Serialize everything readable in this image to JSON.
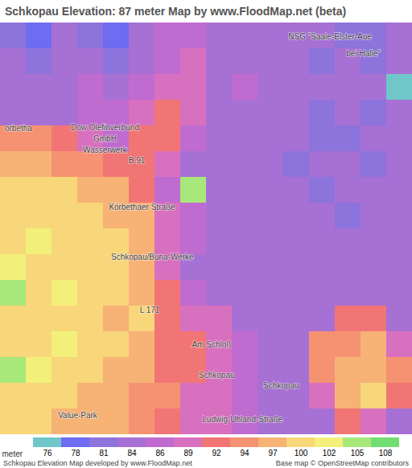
{
  "chart_data": {
    "type": "heatmap",
    "title": "Schkopau Elevation: 87 meter Map by www.FloodMap.net (beta)",
    "tick_labels": false,
    "cells": [
      [
        81,
        78,
        84,
        81,
        78,
        84,
        86,
        86,
        84,
        84,
        84,
        84,
        84,
        81,
        81,
        84
      ],
      [
        84,
        81,
        84,
        84,
        81,
        84,
        86,
        89,
        84,
        84,
        84,
        84,
        81,
        84,
        81,
        84
      ],
      [
        84,
        84,
        84,
        86,
        84,
        86,
        89,
        89,
        84,
        86,
        84,
        84,
        84,
        84,
        84,
        76
      ],
      [
        84,
        84,
        84,
        86,
        86,
        89,
        92,
        89,
        84,
        84,
        84,
        84,
        81,
        84,
        81,
        84
      ],
      [
        94,
        94,
        92,
        89,
        86,
        92,
        92,
        86,
        84,
        84,
        84,
        84,
        81,
        81,
        84,
        84
      ],
      [
        97,
        97,
        94,
        94,
        92,
        92,
        89,
        84,
        84,
        84,
        84,
        81,
        84,
        84,
        81,
        84
      ],
      [
        100,
        100,
        100,
        97,
        97,
        92,
        86,
        105,
        84,
        84,
        84,
        84,
        81,
        84,
        84,
        84
      ],
      [
        100,
        100,
        100,
        100,
        97,
        97,
        89,
        86,
        84,
        84,
        84,
        84,
        84,
        81,
        84,
        84
      ],
      [
        100,
        102,
        100,
        100,
        100,
        97,
        89,
        86,
        84,
        84,
        84,
        84,
        84,
        84,
        84,
        84
      ],
      [
        102,
        100,
        100,
        100,
        100,
        97,
        89,
        84,
        84,
        84,
        84,
        84,
        84,
        84,
        84,
        84
      ],
      [
        105,
        100,
        102,
        100,
        100,
        97,
        92,
        86,
        84,
        84,
        84,
        84,
        84,
        84,
        84,
        84
      ],
      [
        100,
        100,
        100,
        100,
        97,
        100,
        92,
        89,
        89,
        84,
        84,
        84,
        84,
        92,
        92,
        84
      ],
      [
        100,
        100,
        102,
        100,
        100,
        97,
        92,
        92,
        89,
        86,
        84,
        84,
        94,
        94,
        97,
        89
      ],
      [
        105,
        102,
        100,
        100,
        97,
        97,
        92,
        92,
        89,
        86,
        84,
        84,
        94,
        97,
        97,
        94
      ],
      [
        100,
        100,
        100,
        97,
        97,
        94,
        94,
        89,
        89,
        86,
        84,
        84,
        89,
        97,
        100,
        92
      ],
      [
        100,
        100,
        97,
        97,
        97,
        94,
        92,
        89,
        89,
        86,
        84,
        84,
        84,
        92,
        89,
        84
      ]
    ],
    "colorbar": {
      "label": "meter",
      "ticks": [
        76,
        78,
        81,
        84,
        86,
        89,
        92,
        94,
        97,
        100,
        102,
        105,
        108
      ],
      "colors": [
        "#6fc7c9",
        "#6e6cf0",
        "#8d73dc",
        "#a770d4",
        "#c06bd0",
        "#d870c0",
        "#f27575",
        "#f59272",
        "#f7b276",
        "#f8d67a",
        "#f2f07a",
        "#a8e87a",
        "#72de72"
      ]
    },
    "annotations": [
      {
        "text": "NSG \"Saale-Elster-Aue",
        "x": 12.8,
        "y": 0.55
      },
      {
        "text": "bei Halle\"",
        "x": 14.1,
        "y": 1.2
      },
      {
        "text": "orbetha",
        "x": 0.7,
        "y": 4.1
      },
      {
        "text": "Dow Olefinverbund",
        "x": 4.06,
        "y": 4.06
      },
      {
        "text": "GmbH",
        "x": 4.06,
        "y": 4.5
      },
      {
        "text": "Wasserwerk",
        "x": 4.06,
        "y": 4.94
      },
      {
        "text": "B 91",
        "x": 5.3,
        "y": 5.35
      },
      {
        "text": "Körbethaer Straße",
        "x": 5.5,
        "y": 7.15
      },
      {
        "text": "Schkopau/Buna-Werke",
        "x": 5.9,
        "y": 9.1
      },
      {
        "text": "L 171",
        "x": 5.8,
        "y": 11.15
      },
      {
        "text": "Am Schloß",
        "x": 8.2,
        "y": 12.5
      },
      {
        "text": "Schkopau",
        "x": 8.4,
        "y": 13.7
      },
      {
        "text": "Schkopau",
        "x": 10.9,
        "y": 14.1
      },
      {
        "text": "Value-Park",
        "x": 3.0,
        "y": 15.25
      },
      {
        "text": "Ludwig-Uhland-Straße",
        "x": 9.4,
        "y": 15.4
      }
    ],
    "caption": "Schkopau Elevation Map developed by www.FloodMap.net",
    "credit": "Base map © OpenStreetMap contributors"
  }
}
